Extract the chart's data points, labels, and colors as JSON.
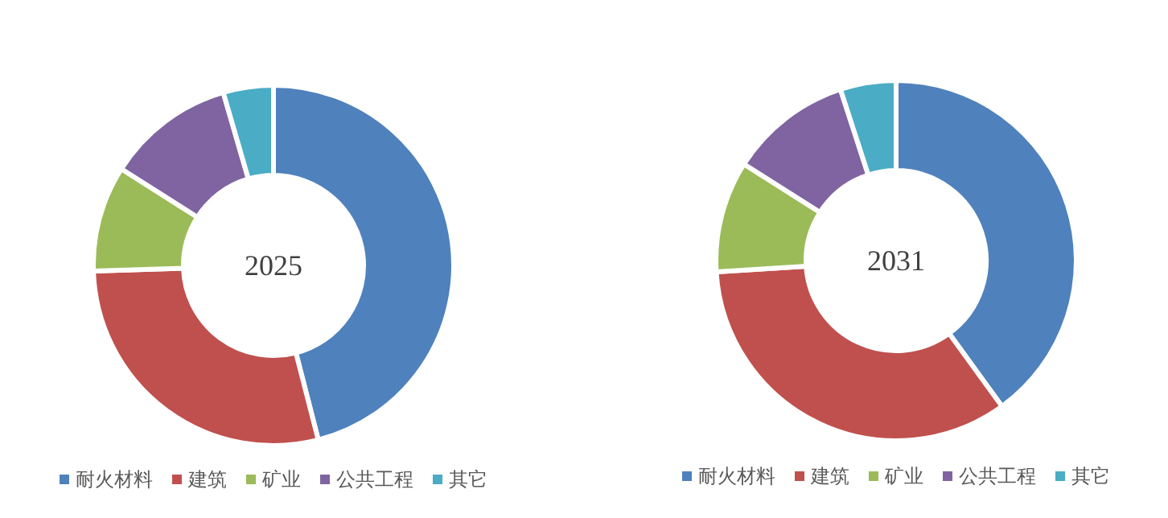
{
  "chart_data": [
    {
      "type": "donut",
      "title": "2025",
      "categories": [
        "耐火材料",
        "建筑",
        "矿业",
        "公共工程",
        "其它"
      ],
      "values": [
        46,
        28.5,
        9.5,
        11.5,
        4.5
      ],
      "colors": [
        "#4f81bd",
        "#c0504d",
        "#9bbb59",
        "#8064a2",
        "#4bacc6"
      ],
      "legend": "bottom"
    },
    {
      "type": "donut",
      "title": "2031",
      "categories": [
        "耐火材料",
        "建筑",
        "矿业",
        "公共工程",
        "其它"
      ],
      "values": [
        40,
        34,
        10,
        11,
        5
      ],
      "colors": [
        "#4f81bd",
        "#c0504d",
        "#9bbb59",
        "#8064a2",
        "#4bacc6"
      ],
      "legend": "bottom"
    }
  ]
}
